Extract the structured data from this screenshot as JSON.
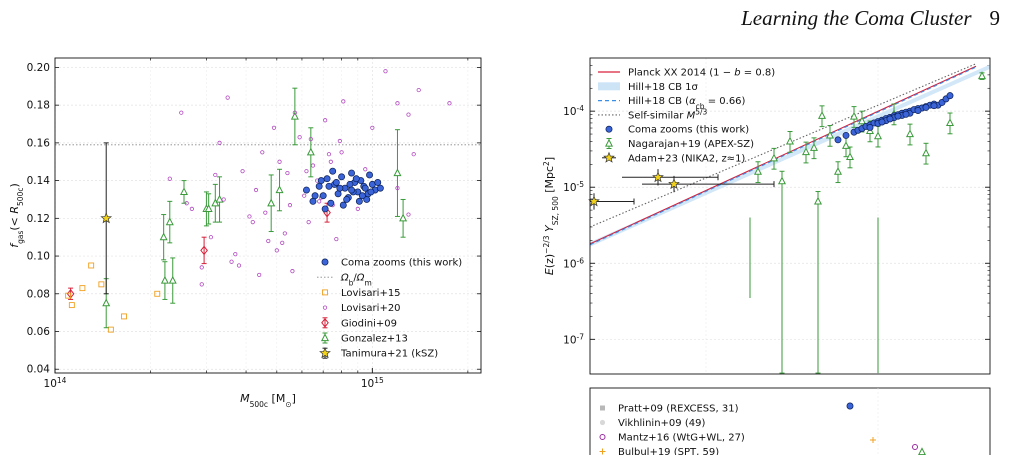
{
  "header": {
    "title": "Learning the Coma Cluster",
    "page_number": "9"
  },
  "colors": {
    "coma": "#3a64d8",
    "planck": "#d6203a",
    "hill_band": "#cde4f7",
    "hill_line": "#3b8ee6",
    "gonzalez": "#3a9a3a",
    "lovisari15": "#f0a020",
    "lovisari20": "#b248c0",
    "giodini": "#d6203a",
    "tanimura": "#f2d21a",
    "nagarajan": "#3a9a3a",
    "adam": "#f2d21a"
  },
  "chart_data": [
    {
      "type": "scatter",
      "xlabel": "M_500c [M_⊙]",
      "ylabel": "f_gas(< R_500c)",
      "xscale": "log",
      "xlim": [
        100000000000000.0,
        2200000000000000.0
      ],
      "ylim": [
        0.038,
        0.205
      ],
      "x_ticks": [
        {
          "v": 100000000000000.0,
          "label": "10^14"
        },
        {
          "v": 1000000000000000.0,
          "label": "10^15"
        }
      ],
      "y_ticks": [
        0.04,
        0.06,
        0.08,
        0.1,
        0.12,
        0.14,
        0.16,
        0.18,
        0.2
      ],
      "y_tick_labels": [
        "0.04",
        "0.06",
        "0.08",
        "0.10",
        "0.12",
        "0.14",
        "0.16",
        "0.18",
        "0.20"
      ],
      "reference_line": {
        "name": "Ω_b/Ω_m",
        "y": 0.159
      },
      "legend": {
        "position": "lower-right",
        "entries": [
          "Coma zooms (this work)",
          "Ω_b/Ω_m",
          "Lovisari+15",
          "Lovisari+20",
          "Giodini+09",
          "Gonzalez+13",
          "Tanimura+21 (kSZ)"
        ]
      },
      "series": [
        {
          "name": "Coma zooms (this work)",
          "marker": "filled-circle",
          "x": [
            620000000000000.0,
            650000000000000.0,
            680000000000000.0,
            700000000000000.0,
            720000000000000.0,
            740000000000000.0,
            760000000000000.0,
            780000000000000.0,
            800000000000000.0,
            820000000000000.0,
            840000000000000.0,
            860000000000000.0,
            880000000000000.0,
            900000000000000.0,
            920000000000000.0,
            940000000000000.0,
            960000000000000.0,
            980000000000000.0,
            1000000000000000.0,
            1020000000000000.0,
            1040000000000000.0,
            710000000000000.0,
            750000000000000.0,
            810000000000000.0,
            870000000000000.0,
            930000000000000.0,
            690000000000000.0,
            790000000000000.0,
            850000000000000.0,
            910000000000000.0,
            970000000000000.0,
            730000000000000.0,
            830000000000000.0,
            890000000000000.0,
            950000000000000.0,
            770000000000000.0,
            660000000000000.0,
            1060000000000000.0,
            860000000000000.0,
            990000000000000.0
          ],
          "y": [
            0.135,
            0.129,
            0.137,
            0.132,
            0.141,
            0.128,
            0.138,
            0.133,
            0.142,
            0.136,
            0.131,
            0.144,
            0.139,
            0.134,
            0.14,
            0.137,
            0.13,
            0.143,
            0.138,
            0.135,
            0.139,
            0.125,
            0.145,
            0.127,
            0.134,
            0.132,
            0.14,
            0.136,
            0.138,
            0.129,
            0.133,
            0.137,
            0.13,
            0.141,
            0.136,
            0.139,
            0.132,
            0.136,
            0.135,
            0.134
          ]
        },
        {
          "name": "Lovisari+15",
          "marker": "open-square",
          "x": [
            110000000000000.0,
            113000000000000.0,
            122000000000000.0,
            130000000000000.0,
            150000000000000.0,
            165000000000000.0,
            210000000000000.0,
            140000000000000.0
          ],
          "y": [
            0.079,
            0.074,
            0.083,
            0.095,
            0.061,
            0.068,
            0.08,
            0.085
          ]
        },
        {
          "name": "Lovisari+20",
          "marker": "small-open-circle",
          "x": [
            230000000000000.0,
            250000000000000.0,
            270000000000000.0,
            290000000000000.0,
            310000000000000.0,
            330000000000000.0,
            350000000000000.0,
            370000000000000.0,
            390000000000000.0,
            410000000000000.0,
            430000000000000.0,
            450000000000000.0,
            470000000000000.0,
            490000000000000.0,
            510000000000000.0,
            530000000000000.0,
            550000000000000.0,
            570000000000000.0,
            590000000000000.0,
            610000000000000.0,
            630000000000000.0,
            650000000000000.0,
            670000000000000.0,
            690000000000000.0,
            710000000000000.0,
            730000000000000.0,
            750000000000000.0,
            770000000000000.0,
            790000000000000.0,
            810000000000000.0,
            850000000000000.0,
            900000000000000.0,
            950000000000000.0,
            1000000000000000.0,
            1100000000000000.0,
            1200000000000000.0,
            1300000000000000.0,
            1400000000000000.0,
            1300000000000000.0,
            1750000000000000.0,
            1200000000000000.0,
            1350000000000000.0,
            290000000000000.0,
            340000000000000.0,
            380000000000000.0,
            440000000000000.0,
            500000000000000.0,
            560000000000000.0,
            620000000000000.0,
            680000000000000.0,
            740000000000000.0,
            800000000000000.0,
            320000000000000.0,
            420000000000000.0,
            520000000000000.0,
            640000000000000.0,
            260000000000000.0,
            360000000000000.0,
            460000000000000.0,
            540000000000000.0
          ],
          "y": [
            0.141,
            0.176,
            0.125,
            0.085,
            0.11,
            0.16,
            0.184,
            0.101,
            0.145,
            0.121,
            0.135,
            0.155,
            0.108,
            0.168,
            0.15,
            0.112,
            0.127,
            0.176,
            0.163,
            0.132,
            0.118,
            0.148,
            0.14,
            0.131,
            0.172,
            0.154,
            0.127,
            0.109,
            0.161,
            0.182,
            0.138,
            0.125,
            0.146,
            0.168,
            0.198,
            0.181,
            0.175,
            0.188,
            0.122,
            0.181,
            0.136,
            0.154,
            0.094,
            0.13,
            0.095,
            0.09,
            0.103,
            0.092,
            0.145,
            0.129,
            0.15,
            0.155,
            0.143,
            0.118,
            0.107,
            0.162,
            0.128,
            0.097,
            0.123,
            0.144
          ]
        },
        {
          "name": "Giodini+09",
          "marker": "open-diamond",
          "x": [
            112000000000000.0,
            295000000000000.0,
            720000000000000.0
          ],
          "y": [
            0.08,
            0.103,
            0.123
          ],
          "yerr": [
            0.003,
            0.007,
            0.005
          ]
        },
        {
          "name": "Gonzalez+13",
          "marker": "open-triangle",
          "x": [
            145000000000000.0,
            220000000000000.0,
            222000000000000.0,
            230000000000000.0,
            235000000000000.0,
            255000000000000.0,
            300000000000000.0,
            305000000000000.0,
            320000000000000.0,
            330000000000000.0,
            480000000000000.0,
            510000000000000.0,
            570000000000000.0,
            640000000000000.0,
            1200000000000000.0,
            1250000000000000.0
          ],
          "y": [
            0.075,
            0.11,
            0.087,
            0.118,
            0.087,
            0.134,
            0.125,
            0.125,
            0.128,
            0.13,
            0.128,
            0.135,
            0.174,
            0.155,
            0.144,
            0.12
          ],
          "yerr": [
            0.013,
            0.012,
            0.01,
            0.011,
            0.012,
            0.006,
            0.009,
            0.008,
            0.01,
            0.012,
            0.015,
            0.011,
            0.015,
            0.013,
            0.023,
            0.01
          ]
        },
        {
          "name": "Tanimura+21 (kSZ)",
          "marker": "filled-star",
          "x": [
            145000000000000.0
          ],
          "y": [
            0.12
          ],
          "yerr": [
            0.04
          ]
        }
      ]
    },
    {
      "type": "scatter",
      "xlabel": "",
      "ylabel": "E(z)^{-2/3} Y_SZ,500 [Mpc^2]",
      "yscale": "log",
      "ylim": [
        3.5e-08,
        0.0005
      ],
      "y_ticks": [
        {
          "v": 1e-07,
          "label": "10^-7"
        },
        {
          "v": 1e-06,
          "label": "10^-6"
        },
        {
          "v": 1e-05,
          "label": "10^-5"
        },
        {
          "v": 0.0001,
          "label": "10^-4"
        }
      ],
      "legend": {
        "position": "top-left",
        "entries": [
          "Planck XX 2014 (1 − b = 0.8)",
          "Hill+18 CB 1σ",
          "Hill+18 CB (α_cb = 0.66)",
          "Self-similar M^5/3",
          "Coma zooms (this work)",
          "Nagarajan+19 (APEX-SZ)",
          "Adam+23 (NIKA2, z≈1)"
        ]
      },
      "lines": [
        {
          "name": "Planck XX 2014 (1 − b = 0.8)",
          "style": "solid",
          "y_left": 1.8e-06,
          "y_right": 0.00039
        },
        {
          "name": "Hill+18 CB (α_cb = 0.66)",
          "style": "dashed",
          "y_left": 1.75e-06,
          "y_right": 0.00038
        },
        {
          "name": "Self-similar M^5/3",
          "style": "dotted",
          "y_left": 3e-06,
          "y_right": 0.00042
        }
      ],
      "series": [
        {
          "name": "Coma zooms (this work)",
          "marker": "filled-circle",
          "xfrac": [
            0.62,
            0.64,
            0.66,
            0.67,
            0.68,
            0.69,
            0.7,
            0.71,
            0.72,
            0.72,
            0.73,
            0.74,
            0.74,
            0.75,
            0.76,
            0.76,
            0.77,
            0.78,
            0.78,
            0.79,
            0.8,
            0.8,
            0.81,
            0.82,
            0.83,
            0.84,
            0.85,
            0.86,
            0.87,
            0.88,
            0.89,
            0.9,
            0.75,
            0.79,
            0.82,
            0.7,
            0.84,
            0.77,
            0.86,
            0.73
          ],
          "y": [
            4.2e-05,
            4.8e-05,
            5.3e-05,
            5.6e-05,
            5.9e-05,
            6.3e-05,
            6.6e-05,
            7e-05,
            7.3e-05,
            6.9e-05,
            7.6e-05,
            8e-05,
            7.5e-05,
            8.3e-05,
            8.7e-05,
            8.2e-05,
            9e-05,
            9.4e-05,
            8.8e-05,
            9.7e-05,
            0.0001,
            9.4e-05,
            0.000105,
            0.000108,
            0.00011,
            0.000115,
            0.00012,
            0.000124,
            0.00012,
            0.00013,
            0.000145,
            0.00016,
            7.9e-05,
            9.1e-05,
            0.000102,
            6.1e-05,
            0.000112,
            8.6e-05,
            0.000118,
            7.2e-05
          ]
        },
        {
          "name": "Nagarajan+19 (APEX-SZ)",
          "marker": "open-triangle",
          "xfrac": [
            0.42,
            0.46,
            0.48,
            0.5,
            0.54,
            0.56,
            0.57,
            0.6,
            0.62,
            0.64,
            0.66,
            0.68,
            0.7,
            0.72,
            0.76,
            0.8,
            0.84,
            0.9,
            0.98,
            0.58,
            0.65
          ],
          "y": [
            1.6e-05,
            2.4e-05,
            1.2e-05,
            4e-05,
            2.9e-05,
            3.3e-05,
            6.5e-06,
            4.8e-05,
            1.6e-05,
            3.5e-05,
            8.5e-05,
            7.4e-05,
            5.5e-05,
            4.7e-05,
            9.2e-05,
            5e-05,
            2.8e-05,
            7e-05,
            0.00029,
            8.7e-05,
            2.5e-05
          ]
        },
        {
          "name": "Adam+23 (NIKA2, z≈1)",
          "marker": "filled-star",
          "xfrac": [
            0.0,
            0.17,
            0.21
          ],
          "y": [
            6.5e-06,
            1.35e-05,
            1.1e-05
          ]
        }
      ]
    },
    {
      "type": "scatter",
      "legend": {
        "position": "top-left",
        "entries": [
          "Pratt+09 (REXCESS, 31)",
          "Vikhlinin+09 (49)",
          "Mantz+16 (WtG+WL, 27)",
          "Bulbul+19 (SPT, 59)"
        ]
      }
    }
  ]
}
